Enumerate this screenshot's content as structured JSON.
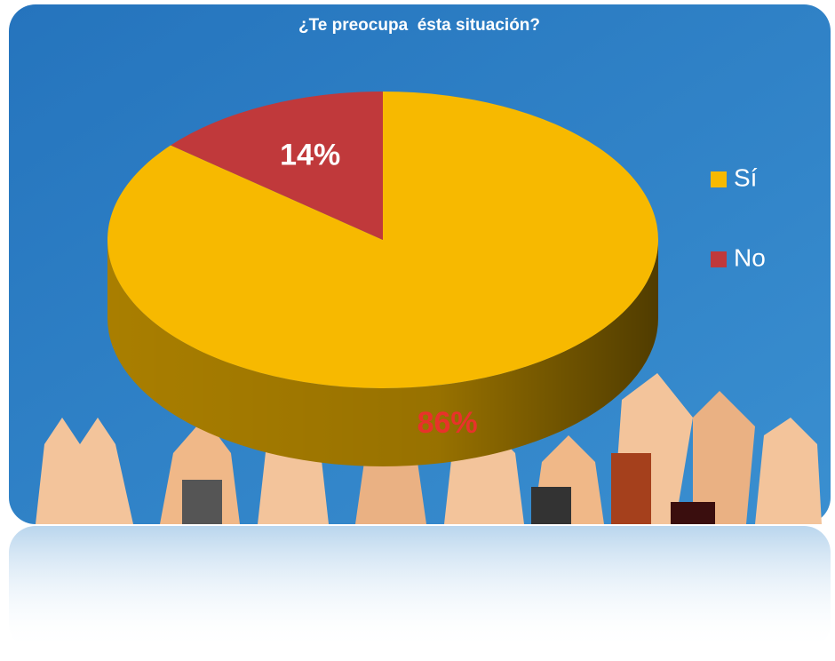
{
  "chart_data": {
    "type": "pie",
    "title": "¿Te preocupa  ésta situación?",
    "categories": [
      "Sí",
      "No"
    ],
    "values": [
      86,
      14
    ],
    "value_labels": [
      "86%",
      "14%"
    ],
    "colors": [
      "#f7b900",
      "#c0393b"
    ],
    "value_label_colors": [
      "#e8322a",
      "#ffffff"
    ],
    "legend": "right"
  }
}
